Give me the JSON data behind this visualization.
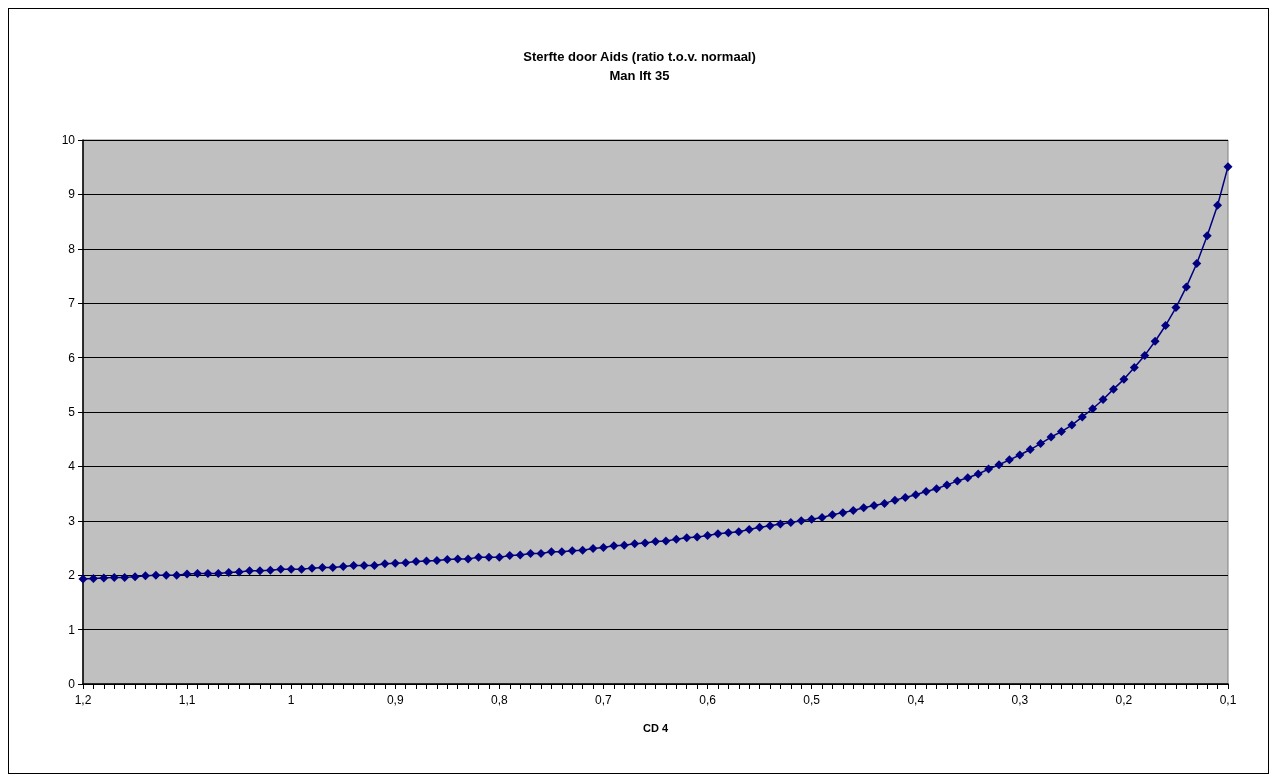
{
  "chart_data": {
    "type": "line",
    "title": "Sterfte door Aids (ratio t.o.v. normaal)",
    "subtitle": "Man lft 35",
    "xlabel": "CD 4",
    "categories": [
      "1,2",
      null,
      null,
      null,
      null,
      null,
      null,
      null,
      null,
      null,
      "1,1",
      null,
      null,
      null,
      null,
      null,
      null,
      null,
      null,
      null,
      "1",
      null,
      null,
      null,
      null,
      null,
      null,
      null,
      null,
      null,
      "0,9",
      null,
      null,
      null,
      null,
      null,
      null,
      null,
      null,
      null,
      "0,8",
      null,
      null,
      null,
      null,
      null,
      null,
      null,
      null,
      null,
      "0,7",
      null,
      null,
      null,
      null,
      null,
      null,
      null,
      null,
      null,
      "0,6",
      null,
      null,
      null,
      null,
      null,
      null,
      null,
      null,
      null,
      "0,5",
      null,
      null,
      null,
      null,
      null,
      null,
      null,
      null,
      null,
      "0,4",
      null,
      null,
      null,
      null,
      null,
      null,
      null,
      null,
      null,
      "0,3",
      null,
      null,
      null,
      null,
      null,
      null,
      null,
      null,
      null,
      "0,2",
      null,
      null,
      null,
      null,
      null,
      null,
      null,
      null,
      null,
      "0,1"
    ],
    "series": [
      {
        "color": "#000080",
        "values": [
          1.93,
          1.94,
          1.95,
          1.96,
          1.96,
          1.97,
          1.99,
          2.0,
          2.0,
          2.0,
          2.02,
          2.03,
          2.03,
          2.03,
          2.05,
          2.06,
          2.08,
          2.08,
          2.09,
          2.11,
          2.11,
          2.11,
          2.13,
          2.14,
          2.14,
          2.16,
          2.18,
          2.18,
          2.18,
          2.21,
          2.22,
          2.23,
          2.25,
          2.26,
          2.27,
          2.29,
          2.3,
          2.3,
          2.33,
          2.33,
          2.33,
          2.36,
          2.37,
          2.4,
          2.4,
          2.43,
          2.43,
          2.45,
          2.46,
          2.49,
          2.51,
          2.54,
          2.55,
          2.58,
          2.59,
          2.62,
          2.63,
          2.66,
          2.69,
          2.7,
          2.73,
          2.76,
          2.78,
          2.8,
          2.84,
          2.88,
          2.91,
          2.94,
          2.97,
          3.0,
          3.03,
          3.06,
          3.11,
          3.15,
          3.19,
          3.24,
          3.28,
          3.32,
          3.38,
          3.43,
          3.48,
          3.54,
          3.59,
          3.66,
          3.73,
          3.79,
          3.86,
          3.95,
          4.03,
          4.12,
          4.21,
          4.31,
          4.42,
          4.54,
          4.64,
          4.76,
          4.91,
          5.06,
          5.23,
          5.42,
          5.6,
          5.82,
          6.04,
          6.3,
          6.59,
          6.92,
          7.3,
          7.73,
          8.24,
          8.8,
          9.51
        ]
      }
    ],
    "ylim": [
      0,
      10
    ],
    "yticks": [
      0,
      1,
      2,
      3,
      4,
      5,
      6,
      7,
      8,
      9,
      10
    ],
    "grid": "y",
    "marker": "diamond",
    "line_style": "solid"
  }
}
